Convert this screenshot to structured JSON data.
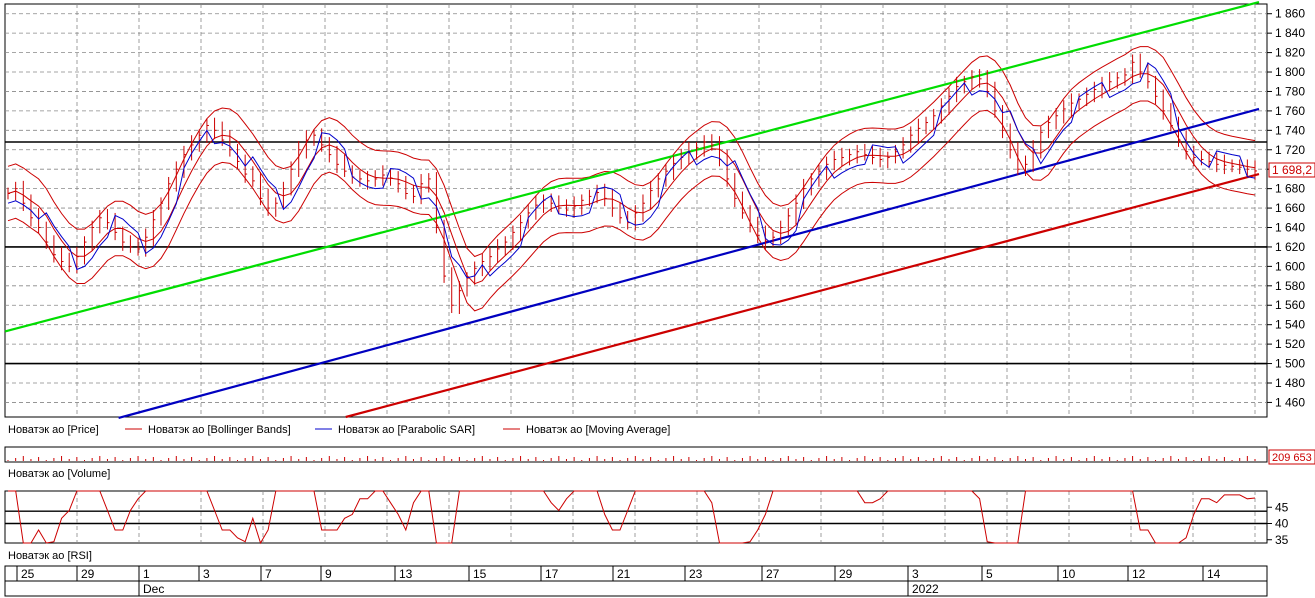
{
  "chart_data": {
    "type": "line",
    "price_panel": {
      "y_ticks": [
        "1 460",
        "1 480",
        "1 500",
        "1 520",
        "1 540",
        "1 560",
        "1 580",
        "1 600",
        "1 620",
        "1 640",
        "1 660",
        "1 680",
        "1 700",
        "1 720",
        "1 740",
        "1 760",
        "1 780",
        "1 800",
        "1 820",
        "1 840",
        "1 860"
      ],
      "y_tick_values": [
        1460,
        1480,
        1500,
        1520,
        1540,
        1560,
        1580,
        1600,
        1620,
        1640,
        1660,
        1680,
        1700,
        1720,
        1740,
        1760,
        1780,
        1800,
        1820,
        1840,
        1860
      ],
      "ylim": [
        1445,
        1870
      ],
      "last_price_label": "1 698,2",
      "last_price": 1698.2,
      "horizontal_levels": [
        1500,
        1620,
        1728
      ],
      "trendlines": [
        {
          "color": "#00dd00",
          "from": [
            0,
            1533
          ],
          "to": [
            1.0,
            1872
          ]
        },
        {
          "color": "#0000c0",
          "from": [
            0.09,
            1444
          ],
          "to": [
            1.0,
            1762
          ]
        },
        {
          "color": "#cc0000",
          "from": [
            0.27,
            1445
          ],
          "to": [
            1.0,
            1695
          ]
        }
      ],
      "close_series": [
        1675,
        1680,
        1665,
        1650,
        1640,
        1625,
        1612,
        1605,
        1600,
        1610,
        1625,
        1640,
        1650,
        1645,
        1635,
        1625,
        1620,
        1618,
        1630,
        1648,
        1665,
        1685,
        1700,
        1715,
        1725,
        1735,
        1745,
        1740,
        1730,
        1720,
        1708,
        1695,
        1688,
        1670,
        1660,
        1665,
        1680,
        1700,
        1720,
        1730,
        1735,
        1725,
        1715,
        1705,
        1698,
        1692,
        1690,
        1688,
        1690,
        1694,
        1691,
        1685,
        1675,
        1672,
        1685,
        1690,
        1640,
        1590,
        1560,
        1575,
        1588,
        1598,
        1605,
        1610,
        1618,
        1625,
        1635,
        1645,
        1655,
        1663,
        1668,
        1665,
        1660,
        1658,
        1662,
        1668,
        1672,
        1676,
        1670,
        1660,
        1650,
        1645,
        1655,
        1665,
        1678,
        1690,
        1698,
        1706,
        1712,
        1718,
        1722,
        1728,
        1725,
        1710,
        1690,
        1670,
        1655,
        1642,
        1632,
        1626,
        1630,
        1640,
        1652,
        1665,
        1680,
        1690,
        1698,
        1705,
        1710,
        1712,
        1715,
        1718,
        1715,
        1712,
        1710,
        1712,
        1718,
        1725,
        1735,
        1742,
        1748,
        1755,
        1765,
        1775,
        1785,
        1790,
        1795,
        1793,
        1780,
        1760,
        1740,
        1720,
        1700,
        1705,
        1720,
        1738,
        1748,
        1755,
        1762,
        1768,
        1772,
        1777,
        1782,
        1786,
        1790,
        1794,
        1797,
        1810,
        1800,
        1790,
        1775,
        1760,
        1745,
        1730,
        1718,
        1712,
        1710,
        1708,
        1705,
        1704,
        1703,
        1702,
        1700,
        1698.2
      ],
      "bollinger_upper_offset": 28,
      "bollinger_lower_offset": 28
    },
    "volume_panel": {
      "last_volume_label": "209 653",
      "last_volume": 209653
    },
    "rsi_panel": {
      "y_ticks": [
        "45",
        "40",
        "35"
      ],
      "y_tick_values": [
        45,
        40,
        35
      ],
      "ylim": [
        34,
        50
      ],
      "levels": [
        40,
        43.8
      ]
    },
    "legend": {
      "price": "Новатэк ао [Price]",
      "bollinger": "Новатэк ао [Bollinger Bands]",
      "sar": "Новатэк ао [Parabolic SAR]",
      "ma": "Новатэк ао [Moving Average]",
      "volume": "Новатэк ао [Volume]",
      "rsi": "Новатэк ао [RSI]"
    },
    "x_ticks": [
      "25",
      "29",
      "1",
      "3",
      "7",
      "9",
      "13",
      "15",
      "17",
      "21",
      "23",
      "27",
      "29",
      "3",
      "5",
      "10",
      "12",
      "14"
    ],
    "x_months": [
      "Dec",
      "2022"
    ],
    "colors": {
      "price": "#cc0000",
      "bollinger": "#cc0000",
      "sar": "#0000cc",
      "ma": "#cc0000",
      "green_line": "#00dd00",
      "blue_line": "#0000c0",
      "red_line": "#cc0000",
      "grid": "#888888",
      "label_box": "#cc0000"
    }
  }
}
